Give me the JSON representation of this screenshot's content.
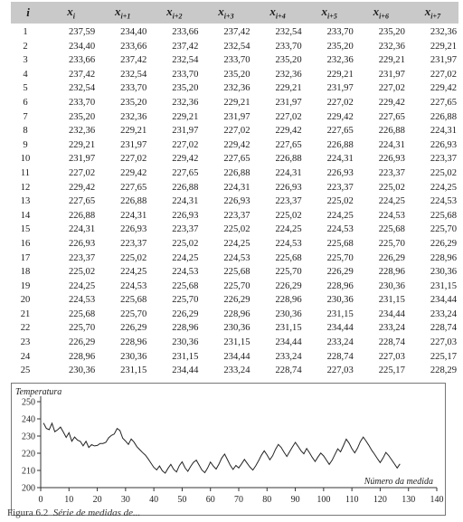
{
  "table": {
    "headers": [
      "i",
      "x_i",
      "x_{i+1}",
      "x_{i+2}",
      "x_{i+3}",
      "x_{i+4}",
      "x_{i+5}",
      "x_{i+6}",
      "x_{i+7}"
    ],
    "header_display": [
      {
        "base": "i",
        "sub": ""
      },
      {
        "base": "x",
        "sub": "i"
      },
      {
        "base": "x",
        "sub": "i+1"
      },
      {
        "base": "x",
        "sub": "i+2"
      },
      {
        "base": "x",
        "sub": "i+3"
      },
      {
        "base": "x",
        "sub": "i+4"
      },
      {
        "base": "x",
        "sub": "i+5"
      },
      {
        "base": "x",
        "sub": "i+6"
      },
      {
        "base": "x",
        "sub": "i+7"
      }
    ],
    "rows": [
      [
        "1",
        "237,59",
        "234,40",
        "233,66",
        "237,42",
        "232,54",
        "233,70",
        "235,20",
        "232,36"
      ],
      [
        "2",
        "234,40",
        "233,66",
        "237,42",
        "232,54",
        "233,70",
        "235,20",
        "232,36",
        "229,21"
      ],
      [
        "3",
        "233,66",
        "237,42",
        "232,54",
        "233,70",
        "235,20",
        "232,36",
        "229,21",
        "231,97"
      ],
      [
        "4",
        "237,42",
        "232,54",
        "233,70",
        "235,20",
        "232,36",
        "229,21",
        "231,97",
        "227,02"
      ],
      [
        "5",
        "232,54",
        "233,70",
        "235,20",
        "232,36",
        "229,21",
        "231,97",
        "227,02",
        "229,42"
      ],
      [
        "6",
        "233,70",
        "235,20",
        "232,36",
        "229,21",
        "231,97",
        "227,02",
        "229,42",
        "227,65"
      ],
      [
        "7",
        "235,20",
        "232,36",
        "229,21",
        "231,97",
        "227,02",
        "229,42",
        "227,65",
        "226,88"
      ],
      [
        "8",
        "232,36",
        "229,21",
        "231,97",
        "227,02",
        "229,42",
        "227,65",
        "226,88",
        "224,31"
      ],
      [
        "9",
        "229,21",
        "231,97",
        "227,02",
        "229,42",
        "227,65",
        "226,88",
        "224,31",
        "226,93"
      ],
      [
        "10",
        "231,97",
        "227,02",
        "229,42",
        "227,65",
        "226,88",
        "224,31",
        "226,93",
        "223,37"
      ],
      [
        "11",
        "227,02",
        "229,42",
        "227,65",
        "226,88",
        "224,31",
        "226,93",
        "223,37",
        "225,02"
      ],
      [
        "12",
        "229,42",
        "227,65",
        "226,88",
        "224,31",
        "226,93",
        "223,37",
        "225,02",
        "224,25"
      ],
      [
        "13",
        "227,65",
        "226,88",
        "224,31",
        "226,93",
        "223,37",
        "225,02",
        "224,25",
        "224,53"
      ],
      [
        "14",
        "226,88",
        "224,31",
        "226,93",
        "223,37",
        "225,02",
        "224,25",
        "224,53",
        "225,68"
      ],
      [
        "15",
        "224,31",
        "226,93",
        "223,37",
        "225,02",
        "224,25",
        "224,53",
        "225,68",
        "225,70"
      ],
      [
        "16",
        "226,93",
        "223,37",
        "225,02",
        "224,25",
        "224,53",
        "225,68",
        "225,70",
        "226,29"
      ],
      [
        "17",
        "223,37",
        "225,02",
        "224,25",
        "224,53",
        "225,68",
        "225,70",
        "226,29",
        "228,96"
      ],
      [
        "18",
        "225,02",
        "224,25",
        "224,53",
        "225,68",
        "225,70",
        "226,29",
        "228,96",
        "230,36"
      ],
      [
        "19",
        "224,25",
        "224,53",
        "225,68",
        "225,70",
        "226,29",
        "228,96",
        "230,36",
        "231,15"
      ],
      [
        "20",
        "224,53",
        "225,68",
        "225,70",
        "226,29",
        "228,96",
        "230,36",
        "231,15",
        "234,44"
      ],
      [
        "21",
        "225,68",
        "225,70",
        "226,29",
        "228,96",
        "230,36",
        "231,15",
        "234,44",
        "233,24"
      ],
      [
        "22",
        "225,70",
        "226,29",
        "228,96",
        "230,36",
        "231,15",
        "234,44",
        "233,24",
        "228,74"
      ],
      [
        "23",
        "226,29",
        "228,96",
        "230,36",
        "231,15",
        "234,44",
        "233,24",
        "228,74",
        "227,03"
      ],
      [
        "24",
        "228,96",
        "230,36",
        "231,15",
        "234,44",
        "233,24",
        "228,74",
        "227,03",
        "225,17"
      ],
      [
        "25",
        "230,36",
        "231,15",
        "234,44",
        "233,24",
        "228,74",
        "227,03",
        "225,17",
        "228,29"
      ]
    ]
  },
  "chart_data": {
    "type": "line",
    "ylabel": "Temperatura",
    "xlabel": "Número da medida",
    "xlim": [
      0,
      140
    ],
    "ylim": [
      200,
      250
    ],
    "x_ticks": [
      0,
      10,
      20,
      30,
      40,
      50,
      60,
      70,
      80,
      90,
      100,
      110,
      120,
      130,
      140
    ],
    "y_ticks": [
      200,
      210,
      220,
      230,
      240,
      250
    ],
    "series": [
      {
        "values": [
          237.59,
          234.4,
          233.66,
          237.42,
          232.54,
          233.7,
          235.2,
          232.36,
          229.21,
          231.97,
          227.02,
          229.42,
          227.65,
          226.88,
          224.31,
          226.93,
          223.37,
          225.02,
          224.25,
          224.53,
          225.68,
          225.7,
          226.29,
          228.96,
          230.36,
          231.15,
          234.44,
          233.24,
          228.74,
          227.03,
          225.17,
          228.29,
          226.5,
          223.8,
          222.1,
          220.4,
          218.9,
          216.7,
          214.2,
          211.8,
          210.3,
          212.6,
          209.8,
          208.4,
          211.2,
          213.5,
          210.7,
          209.1,
          212.8,
          215.0,
          211.6,
          209.5,
          212.3,
          214.7,
          216.0,
          213.1,
          210.2,
          208.7,
          211.4,
          214.9,
          212.6,
          210.8,
          213.7,
          217.2,
          219.5,
          216.3,
          213.0,
          210.6,
          212.9,
          211.5,
          213.8,
          216.4,
          214.1,
          211.9,
          210.2,
          212.7,
          215.6,
          218.8,
          221.4,
          219.0,
          216.2,
          218.5,
          222.3,
          225.1,
          223.4,
          220.6,
          218.1,
          220.9,
          223.7,
          226.3,
          224.0,
          221.5,
          219.7,
          222.8,
          220.3,
          217.6,
          215.2,
          217.8,
          220.1,
          218.4,
          216.0,
          213.5,
          215.9,
          219.3,
          222.6,
          220.8,
          224.5,
          228.2,
          225.9,
          222.7,
          220.2,
          223.0,
          226.8,
          229.4,
          227.1,
          224.6,
          221.8,
          219.4,
          216.9,
          214.6,
          217.2,
          220.5,
          218.7,
          216.3,
          213.9,
          211.4,
          213.8
        ]
      }
    ]
  },
  "caption": {
    "label": "Figura 6.2",
    "text": "Série de medidas de..."
  }
}
